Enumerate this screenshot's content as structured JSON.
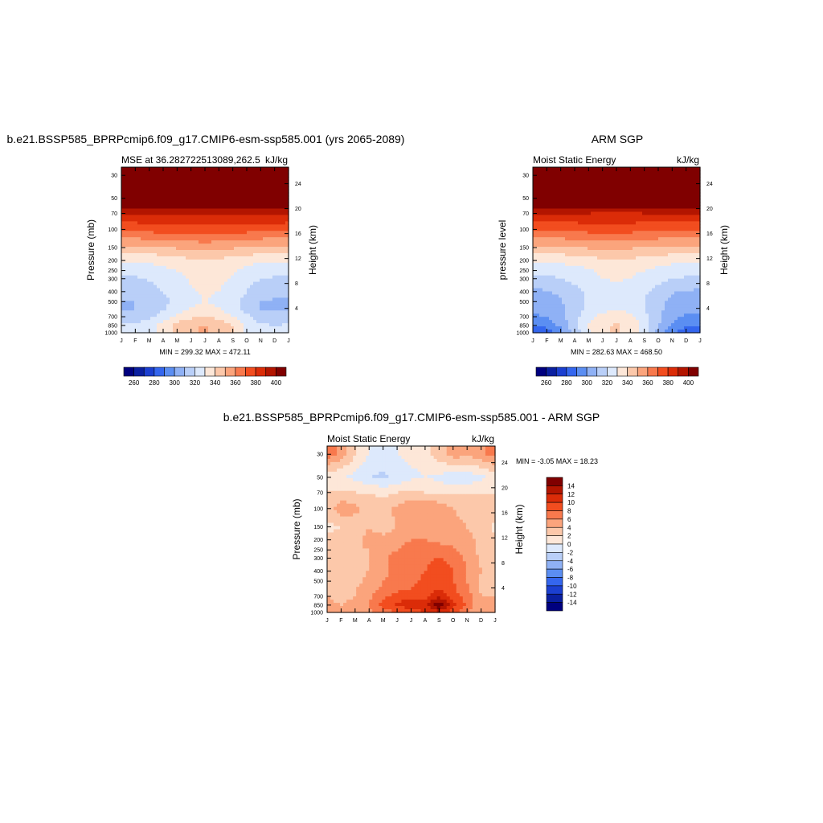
{
  "colors": {
    "abs_levels": [
      "#00007f",
      "#0a1fa0",
      "#1b3fd0",
      "#3466ee",
      "#5b8ef2",
      "#8fb1f5",
      "#b9cff8",
      "#dde9fc",
      "#fde7d8",
      "#fcc8aa",
      "#fba47c",
      "#f8794d",
      "#f24d1f",
      "#db2c08",
      "#b31500",
      "#800000"
    ],
    "diff_levels": [
      "#00007f",
      "#0a1fa0",
      "#1b3fd0",
      "#3466ee",
      "#5b8ef2",
      "#8fb1f5",
      "#b9cff8",
      "#dde9fc",
      "#fde7d8",
      "#fcc8aa",
      "#fba47c",
      "#f8794d",
      "#f24d1f",
      "#db2c08",
      "#b31500",
      "#800000"
    ]
  },
  "chart_data": [
    {
      "id": "model",
      "type": "heatmap",
      "title": "b.e21.BSSP585_BPRPcmip6.f09_g17.CMIP6-esm-ssp585.001 (yrs 2065-2089)",
      "left_label": "MSE at 36.282722513089,262.5",
      "right_label": "kJ/kg",
      "ylabel": "Pressure (mb)",
      "y2label": "Height (km)",
      "x_ticks": [
        "J",
        "F",
        "M",
        "A",
        "M",
        "J",
        "J",
        "A",
        "S",
        "O",
        "N",
        "D",
        "J"
      ],
      "y_ticks": [
        30,
        50,
        70,
        100,
        150,
        200,
        250,
        300,
        400,
        500,
        700,
        850,
        1000
      ],
      "y2_ticks": [
        24,
        20,
        16,
        12,
        8,
        4
      ],
      "minmax": "MIN = 299.32 MAX = 472.11",
      "colorbar_ticks": [
        "260",
        "280",
        "300",
        "320",
        "340",
        "360",
        "380",
        "400"
      ],
      "levels_lower": 255,
      "levels_step": 10,
      "months_x": [
        0,
        1,
        2,
        3,
        4,
        5,
        6,
        7,
        8,
        9,
        10,
        11,
        12
      ],
      "pressure_levels": [
        1000,
        850,
        700,
        600,
        500,
        400,
        300,
        250,
        200,
        150,
        100,
        70,
        50,
        30
      ],
      "values": [
        [
          326,
          327,
          331,
          339,
          348,
          354,
          356,
          353,
          345,
          332,
          326,
          325,
          326
        ],
        [
          326,
          327,
          331,
          339,
          348,
          354,
          356,
          353,
          345,
          332,
          326,
          325,
          326
        ],
        [
          319,
          320,
          323,
          330,
          338,
          343,
          344,
          342,
          336,
          327,
          320,
          319,
          319
        ],
        [
          314,
          315,
          318,
          324,
          331,
          336,
          338,
          336,
          330,
          322,
          315,
          314,
          314
        ],
        [
          314,
          315,
          317,
          322,
          328,
          333,
          335,
          333,
          328,
          321,
          315,
          314,
          314
        ],
        [
          318,
          318,
          320,
          325,
          330,
          334,
          336,
          335,
          331,
          325,
          319,
          318,
          318
        ],
        [
          324,
          324,
          326,
          329,
          333,
          336,
          338,
          337,
          334,
          329,
          325,
          324,
          324
        ],
        [
          328,
          328,
          330,
          332,
          335,
          338,
          339,
          338,
          336,
          332,
          329,
          328,
          328
        ],
        [
          336,
          336,
          337,
          339,
          341,
          343,
          344,
          343,
          341,
          339,
          337,
          336,
          336
        ],
        [
          352,
          352,
          353,
          354,
          356,
          357,
          358,
          357,
          356,
          355,
          353,
          352,
          352
        ],
        [
          378,
          378,
          379,
          380,
          381,
          382,
          382,
          381,
          380,
          379,
          378,
          378,
          378
        ],
        [
          395,
          395,
          396,
          396,
          396,
          396,
          395,
          395,
          396,
          397,
          398,
          396,
          395
        ],
        [
          420,
          420,
          420,
          420,
          420,
          420,
          420,
          420,
          420,
          420,
          420,
          420,
          420
        ],
        [
          465,
          465,
          466,
          467,
          468,
          470,
          472,
          471,
          469,
          467,
          465,
          464,
          465
        ]
      ]
    },
    {
      "id": "obs",
      "type": "heatmap",
      "title": "ARM SGP",
      "left_label": "Moist Static Energy",
      "right_label": "kJ/kg",
      "ylabel": "pressure level",
      "y2label": "Height (km)",
      "x_ticks": [
        "J",
        "F",
        "M",
        "A",
        "M",
        "J",
        "J",
        "A",
        "S",
        "O",
        "N",
        "D",
        "J"
      ],
      "y_ticks": [
        30,
        50,
        70,
        100,
        150,
        200,
        250,
        300,
        400,
        500,
        700,
        850,
        1000
      ],
      "y2_ticks": [
        24,
        20,
        16,
        12,
        8,
        4
      ],
      "minmax": "MIN = 282.63 MAX = 468.50",
      "colorbar_ticks": [
        "260",
        "280",
        "300",
        "320",
        "340",
        "360",
        "380",
        "400"
      ],
      "levels_lower": 255,
      "levels_step": 10,
      "months_x": [
        0,
        1,
        2,
        3,
        4,
        5,
        6,
        7,
        8,
        9,
        10,
        11,
        12
      ],
      "pressure_levels": [
        1000,
        850,
        700,
        600,
        500,
        400,
        300,
        250,
        200,
        150,
        100,
        70,
        50,
        30
      ],
      "values": [
        [
          284,
          289,
          300,
          318,
          334,
          344,
          346,
          343,
          330,
          312,
          296,
          287,
          284
        ],
        [
          296,
          299,
          308,
          322,
          335,
          344,
          346,
          343,
          331,
          316,
          303,
          298,
          296
        ],
        [
          303,
          306,
          312,
          322,
          331,
          338,
          340,
          337,
          328,
          317,
          308,
          304,
          303
        ],
        [
          306,
          308,
          313,
          321,
          328,
          333,
          335,
          333,
          326,
          318,
          310,
          307,
          306
        ],
        [
          309,
          310,
          314,
          320,
          326,
          330,
          332,
          331,
          325,
          318,
          312,
          310,
          309
        ],
        [
          313,
          314,
          317,
          322,
          327,
          330,
          332,
          331,
          327,
          321,
          316,
          314,
          313
        ],
        [
          323,
          323,
          325,
          328,
          332,
          335,
          336,
          335,
          332,
          328,
          325,
          324,
          323
        ],
        [
          328,
          328,
          329,
          331,
          334,
          337,
          338,
          337,
          335,
          332,
          330,
          328,
          328
        ],
        [
          337,
          337,
          338,
          339,
          341,
          343,
          344,
          343,
          341,
          339,
          338,
          337,
          337
        ],
        [
          352,
          352,
          353,
          354,
          356,
          357,
          357,
          356,
          355,
          354,
          353,
          352,
          352
        ],
        [
          376,
          376,
          377,
          378,
          379,
          380,
          380,
          379,
          378,
          377,
          376,
          376,
          376
        ],
        [
          396,
          396,
          396,
          395,
          395,
          394,
          394,
          394,
          395,
          396,
          397,
          396,
          396
        ],
        [
          420,
          420,
          420,
          420,
          420,
          420,
          420,
          420,
          420,
          420,
          420,
          420,
          420
        ],
        [
          462,
          462,
          463,
          464,
          465,
          467,
          468,
          467,
          466,
          464,
          462,
          461,
          462
        ]
      ]
    },
    {
      "id": "diff",
      "type": "heatmap",
      "title": "b.e21.BSSP585_BPRPcmip6.f09_g17.CMIP6-esm-ssp585.001 - ARM SGP",
      "left_label": "Moist Static Energy",
      "right_label": "kJ/kg",
      "ylabel": "Pressure (mb)",
      "y2label": "Height (km)",
      "x_ticks": [
        "J",
        "F",
        "M",
        "A",
        "M",
        "J",
        "J",
        "A",
        "S",
        "O",
        "N",
        "D",
        "J"
      ],
      "y_ticks": [
        30,
        50,
        70,
        100,
        150,
        200,
        250,
        300,
        400,
        500,
        700,
        850,
        1000
      ],
      "y2_ticks": [
        24,
        20,
        16,
        12,
        8,
        4
      ],
      "minmax": "MIN =  -3.05 MAX =  18.23",
      "colorbar_ticks": [
        "14",
        "12",
        "10",
        "8",
        "6",
        "4",
        "2",
        "0",
        "-2",
        "-4",
        "-6",
        "-8",
        "-10",
        "-12",
        "-14"
      ],
      "levels_lower": -15,
      "levels_step": 2,
      "months_x": [
        0,
        1,
        2,
        3,
        4,
        5,
        6,
        7,
        8,
        9,
        10,
        11,
        12
      ],
      "pressure_levels": [
        1000,
        850,
        700,
        600,
        500,
        400,
        300,
        250,
        200,
        150,
        100,
        70,
        50,
        30
      ],
      "values": [
        [
          5.0,
          5.0,
          5.5,
          6.5,
          8.0,
          9.0,
          10.0,
          11.0,
          12.0,
          10.0,
          7.0,
          5.5,
          5.0
        ],
        [
          5.5,
          5.0,
          5.5,
          7.0,
          10.0,
          11.5,
          12.0,
          12.5,
          17.0,
          12.0,
          8.5,
          5.5,
          5.5
        ],
        [
          5.0,
          4.5,
          5.0,
          6.5,
          8.5,
          10.0,
          10.5,
          10.5,
          12.5,
          10.0,
          8.0,
          5.0,
          5.0
        ],
        [
          4.5,
          4.5,
          5.0,
          6.0,
          7.5,
          8.5,
          9.0,
          9.5,
          11.0,
          9.5,
          7.5,
          4.5,
          4.5
        ],
        [
          4.0,
          4.5,
          4.5,
          5.5,
          7.0,
          8.0,
          8.5,
          9.5,
          10.5,
          9.0,
          7.0,
          4.5,
          4.0
        ],
        [
          4.5,
          4.5,
          4.5,
          5.0,
          6.5,
          7.5,
          8.0,
          9.0,
          10.5,
          9.0,
          7.0,
          5.0,
          4.5
        ],
        [
          4.5,
          4.5,
          4.0,
          5.0,
          6.0,
          8.5,
          7.5,
          8.5,
          9.0,
          8.5,
          6.5,
          4.5,
          4.5
        ],
        [
          3.5,
          4.5,
          5.0,
          5.0,
          6.0,
          7.0,
          7.5,
          8.0,
          8.0,
          7.5,
          6.0,
          4.5,
          3.5
        ],
        [
          3.5,
          4.0,
          4.5,
          5.5,
          6.5,
          6.5,
          7.0,
          7.0,
          6.5,
          6.0,
          5.5,
          4.5,
          3.5
        ],
        [
          2.5,
          3.0,
          4.0,
          5.0,
          3.0,
          5.5,
          6.0,
          6.5,
          6.5,
          5.5,
          5.0,
          4.0,
          2.5
        ],
        [
          4.0,
          6.5,
          5.5,
          4.0,
          4.0,
          5.5,
          6.5,
          7.0,
          6.5,
          5.0,
          4.5,
          4.5,
          4.0
        ],
        [
          3.0,
          3.5,
          3.0,
          3.0,
          2.5,
          3.0,
          3.5,
          3.0,
          2.5,
          2.5,
          3.0,
          3.0,
          3.0
        ],
        [
          1.5,
          1.0,
          0.5,
          -1.0,
          -1.5,
          -0.5,
          0.5,
          1.0,
          0.5,
          -0.5,
          -0.5,
          0.5,
          1.5
        ],
        [
          8.0,
          6.5,
          3.0,
          1.0,
          0.5,
          1.0,
          1.5,
          2.0,
          4.0,
          6.0,
          5.5,
          6.5,
          8.0
        ]
      ]
    }
  ]
}
